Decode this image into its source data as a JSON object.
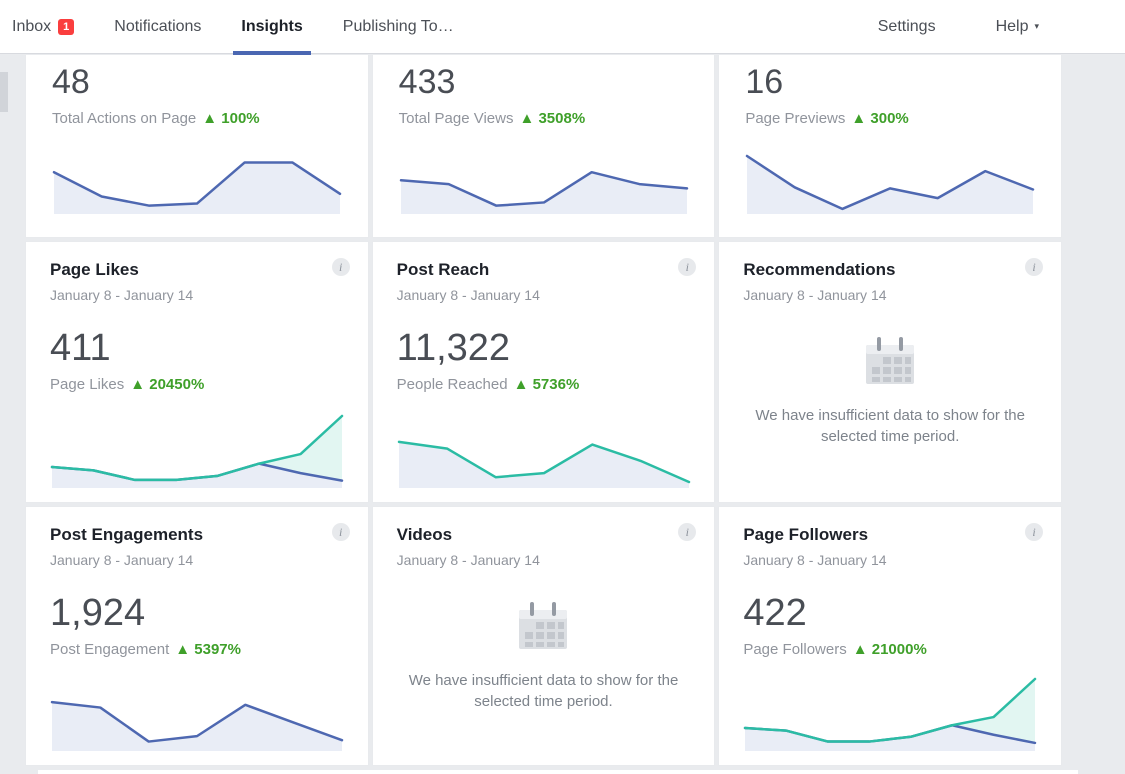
{
  "ui": {
    "info_glyph": "i",
    "insufficient_message": "We have insufficient data to show for the selected time period."
  },
  "nav": {
    "inbox": {
      "label": "Inbox",
      "badge": "1"
    },
    "notifications": {
      "label": "Notifications"
    },
    "insights": {
      "label": "Insights"
    },
    "publishing": {
      "label": "Publishing To…"
    },
    "settings": {
      "label": "Settings"
    },
    "help": {
      "label": "Help",
      "caret": "▾"
    }
  },
  "colors": {
    "accent_blue": "#4a67b2",
    "badge_red": "#fa3e3e",
    "positive_green": "#3fa02a",
    "spark_blue": "#4e68b1",
    "spark_teal": "#2bbca4",
    "spark_fill_blue": "#e9edf6",
    "spark_fill_teal": "#e2f6f2"
  },
  "cards": [
    {
      "value": "48",
      "label": "Total Actions on Page",
      "delta": "▲ 100%",
      "chart": {
        "type": "line",
        "series": [
          {
            "name": "total-actions",
            "stroke": "#4e68b1",
            "fill": "#e9edf6",
            "values": [
              70,
              25,
              8,
              12,
              88,
              88,
              30
            ]
          }
        ]
      }
    },
    {
      "value": "433",
      "label": "Total Page Views",
      "delta": "▲ 3508%",
      "chart": {
        "type": "line",
        "series": [
          {
            "name": "page-views",
            "stroke": "#4e68b1",
            "fill": "#e9edf6",
            "values": [
              55,
              48,
              8,
              14,
              70,
              48,
              40
            ]
          }
        ]
      }
    },
    {
      "value": "16",
      "label": "Page Previews",
      "delta": "▲ 300%",
      "chart": {
        "type": "line",
        "series": [
          {
            "name": "page-previews",
            "stroke": "#4e68b1",
            "fill": "#e9edf6",
            "values": [
              100,
              42,
              2,
              40,
              22,
              72,
              38
            ]
          }
        ]
      }
    },
    {
      "title": "Page Likes",
      "period": "January 8 - January 14",
      "value": "411",
      "label": "Page Likes",
      "delta": "▲ 20450%",
      "chart": {
        "type": "line",
        "series": [
          {
            "name": "organic",
            "stroke": "#2bbca4",
            "fill": "#e2f6f2",
            "values": [
              25,
              20,
              6,
              6,
              12,
              30,
              44,
              100
            ]
          },
          {
            "name": "paid",
            "stroke": "#4e68b1",
            "fill": "#e9edf6",
            "values": [
              25,
              20,
              6,
              6,
              12,
              30,
              16,
              5
            ]
          }
        ]
      }
    },
    {
      "title": "Post Reach",
      "period": "January 8 - January 14",
      "value": "11,322",
      "label": "People Reached",
      "delta": "▲ 5736%",
      "chart": {
        "type": "line",
        "series": [
          {
            "name": "reach",
            "stroke": "#2bbca4",
            "fill": "#e9edf6",
            "values": [
              62,
              52,
              10,
              16,
              58,
              34,
              3
            ]
          }
        ]
      }
    },
    {
      "title": "Recommendations",
      "period": "January 8 - January 14"
    },
    {
      "title": "Post Engagements",
      "period": "January 8 - January 14",
      "value": "1,924",
      "label": "Post Engagement",
      "delta": "▲ 5397%",
      "chart": {
        "type": "line",
        "series": [
          {
            "name": "engagement",
            "stroke": "#4e68b1",
            "fill": "#e9edf6",
            "values": [
              66,
              58,
              8,
              16,
              62,
              36,
              10
            ]
          }
        ]
      }
    },
    {
      "title": "Videos",
      "period": "January 8 - January 14"
    },
    {
      "title": "Page Followers",
      "period": "January 8 - January 14",
      "value": "422",
      "label": "Page Followers",
      "delta": "▲ 21000%",
      "chart": {
        "type": "line",
        "series": [
          {
            "name": "organic",
            "stroke": "#2bbca4",
            "fill": "#e2f6f2",
            "values": [
              28,
              24,
              8,
              8,
              15,
              32,
              44,
              100
            ]
          },
          {
            "name": "paid",
            "stroke": "#4e68b1",
            "fill": "#e9edf6",
            "values": [
              28,
              24,
              8,
              8,
              15,
              32,
              18,
              6
            ]
          }
        ]
      }
    }
  ]
}
